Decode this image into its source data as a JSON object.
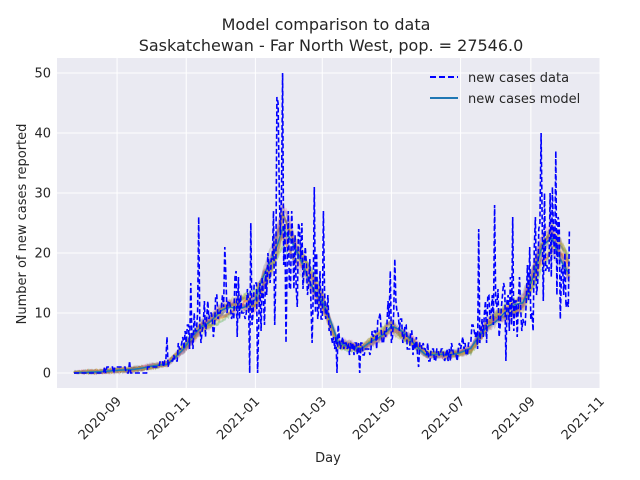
{
  "chart_data": {
    "type": "line",
    "title": "Model comparison to data",
    "subtitle": "Saskatchewan - Far North West, pop. = 27546.0",
    "xlabel": "Day",
    "ylabel": "Number of new cases reported",
    "x_tick_labels": [
      "2020-09",
      "2020-11",
      "2021-01",
      "2021-03",
      "2021-05",
      "2021-07",
      "2021-09",
      "2021-11"
    ],
    "x_tick_dates": [
      "2020-09-01",
      "2020-11-01",
      "2021-01-01",
      "2021-03-01",
      "2021-05-01",
      "2021-07-01",
      "2021-09-01",
      "2021-11-01"
    ],
    "xlim": [
      "2020-07-10",
      "2021-11-01"
    ],
    "ylim": [
      -2.5,
      52.5
    ],
    "y_ticks": [
      0,
      10,
      20,
      30,
      40,
      50
    ],
    "grid": true,
    "legend_position": "top-right",
    "legend": [
      "new cases data",
      "new cases model"
    ],
    "series_style": {
      "data": {
        "color": "#0000ff",
        "dash": "dashed"
      },
      "model": {
        "color": "#1f77b4",
        "dash": "solid"
      }
    },
    "ensemble_colors": [
      "#1f77b4",
      "#ff7f0e",
      "#2ca02c",
      "#d62728",
      "#9467bd",
      "#8c564b",
      "#e377c2",
      "#7f7f7f",
      "#bcbd22"
    ],
    "data_keypoints": [
      [
        "2020-07-25",
        0
      ],
      [
        "2020-08-15",
        0
      ],
      [
        "2020-09-01",
        1
      ],
      [
        "2020-09-20",
        0
      ],
      [
        "2020-10-05",
        1
      ],
      [
        "2020-10-20",
        2
      ],
      [
        "2020-10-30",
        5
      ],
      [
        "2020-11-10",
        8
      ],
      [
        "2020-11-25",
        9
      ],
      [
        "2020-12-10",
        12
      ],
      [
        "2020-12-25",
        10
      ],
      [
        "2021-01-05",
        12
      ],
      [
        "2021-01-15",
        18
      ],
      [
        "2021-01-25",
        25
      ],
      [
        "2021-02-05",
        20
      ],
      [
        "2021-02-15",
        15
      ],
      [
        "2021-02-28",
        14
      ],
      [
        "2021-03-10",
        6
      ],
      [
        "2021-03-25",
        4
      ],
      [
        "2021-04-10",
        4
      ],
      [
        "2021-04-25",
        8
      ],
      [
        "2021-05-05",
        9
      ],
      [
        "2021-05-20",
        5
      ],
      [
        "2021-06-05",
        3
      ],
      [
        "2021-06-20",
        3
      ],
      [
        "2021-07-05",
        4
      ],
      [
        "2021-07-20",
        8
      ],
      [
        "2021-08-05",
        11
      ],
      [
        "2021-08-20",
        11
      ],
      [
        "2021-09-05",
        18
      ],
      [
        "2021-09-20",
        24
      ],
      [
        "2021-10-05",
        17
      ]
    ],
    "data_spikes": [
      [
        "2020-09-12",
        2
      ],
      [
        "2020-10-15",
        6
      ],
      [
        "2020-11-12",
        26
      ],
      [
        "2020-11-05",
        15
      ],
      [
        "2020-12-05",
        21
      ],
      [
        "2020-12-15",
        17
      ],
      [
        "2020-12-28",
        25
      ],
      [
        "2021-01-10",
        17
      ],
      [
        "2021-01-20",
        46
      ],
      [
        "2021-01-21",
        45
      ],
      [
        "2021-01-25",
        50
      ],
      [
        "2021-02-02",
        27
      ],
      [
        "2021-02-22",
        31
      ],
      [
        "2021-03-02",
        27
      ],
      [
        "2021-04-30",
        17
      ],
      [
        "2021-05-04",
        19
      ],
      [
        "2021-07-17",
        24
      ],
      [
        "2021-07-31",
        28
      ],
      [
        "2021-08-16",
        26
      ],
      [
        "2021-09-10",
        40
      ],
      [
        "2021-09-23",
        37
      ]
    ],
    "data_dips": [
      [
        "2020-12-27",
        0
      ],
      [
        "2021-01-03",
        0
      ],
      [
        "2021-01-18",
        8
      ],
      [
        "2021-01-28",
        5
      ],
      [
        "2021-02-20",
        5
      ],
      [
        "2021-03-14",
        0
      ],
      [
        "2021-04-03",
        0
      ],
      [
        "2021-05-25",
        1
      ],
      [
        "2021-08-10",
        2
      ],
      [
        "2021-09-03",
        7
      ],
      [
        "2021-09-27",
        9
      ]
    ],
    "model_keypoints": [
      [
        "2020-07-25",
        0
      ],
      [
        "2020-08-15",
        0.2
      ],
      [
        "2020-09-15",
        0.6
      ],
      [
        "2020-10-15",
        1.5
      ],
      [
        "2020-10-30",
        4
      ],
      [
        "2020-11-15",
        8
      ],
      [
        "2020-12-01",
        10
      ],
      [
        "2020-12-15",
        11
      ],
      [
        "2021-01-01",
        12
      ],
      [
        "2021-01-15",
        19
      ],
      [
        "2021-01-25",
        25
      ],
      [
        "2021-02-05",
        20
      ],
      [
        "2021-02-20",
        15
      ],
      [
        "2021-03-01",
        12
      ],
      [
        "2021-03-15",
        5
      ],
      [
        "2021-04-05",
        4
      ],
      [
        "2021-04-20",
        6
      ],
      [
        "2021-05-01",
        8
      ],
      [
        "2021-05-15",
        6
      ],
      [
        "2021-06-01",
        3
      ],
      [
        "2021-06-20",
        3
      ],
      [
        "2021-07-10",
        4
      ],
      [
        "2021-07-25",
        8
      ],
      [
        "2021-08-10",
        10
      ],
      [
        "2021-08-25",
        12
      ],
      [
        "2021-09-10",
        20
      ],
      [
        "2021-09-20",
        22
      ],
      [
        "2021-10-05",
        17
      ]
    ]
  }
}
